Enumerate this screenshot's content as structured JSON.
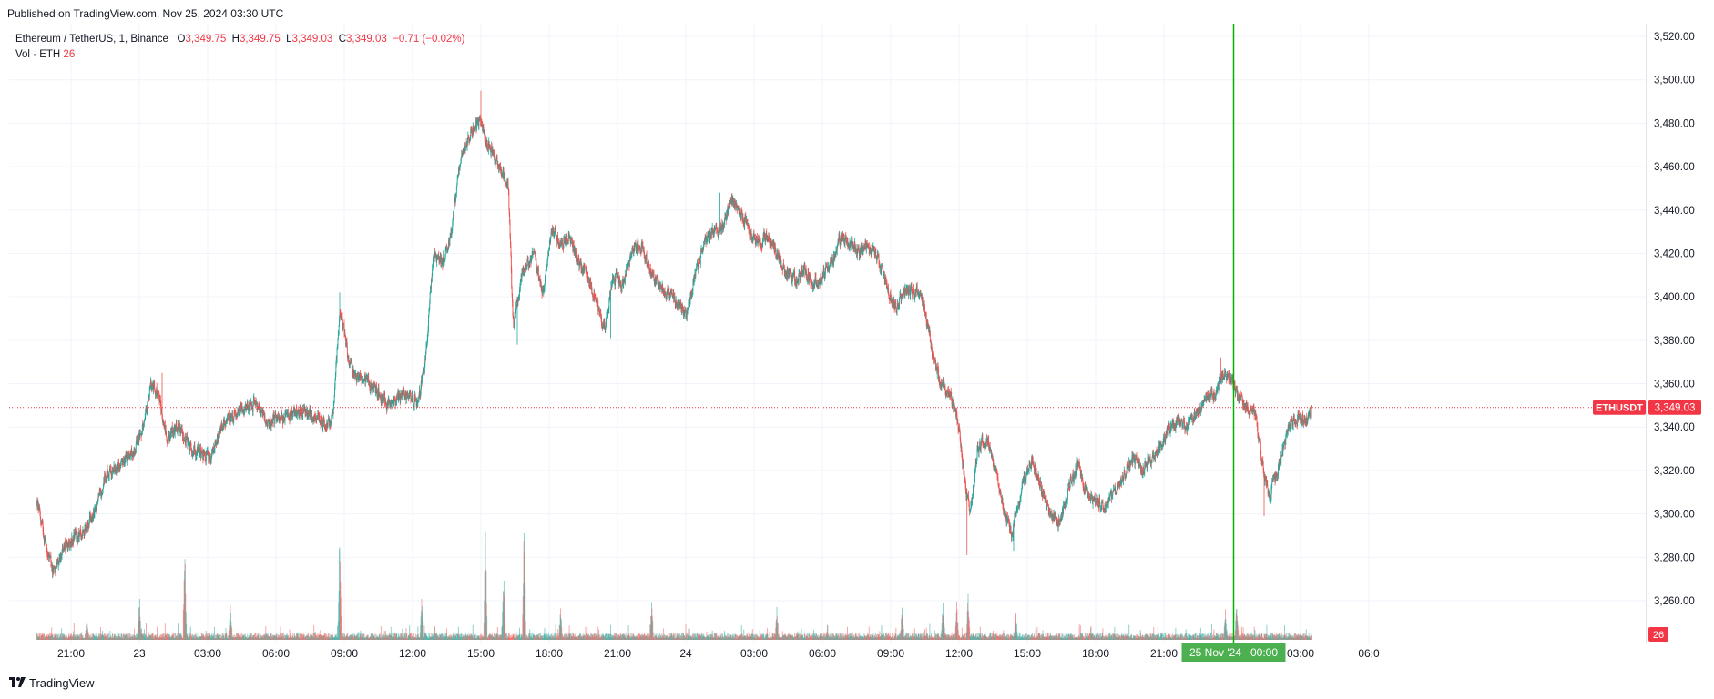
{
  "header": {
    "published": "Published on TradingView.com, Nov 25, 2024 03:30 UTC"
  },
  "legend": {
    "symbol": "Ethereum / TetherUS, 1, Binance",
    "open_label": "O",
    "open": "3,349.75",
    "high_label": "H",
    "high": "3,349.75",
    "low_label": "L",
    "low": "3,349.03",
    "close_label": "C",
    "close": "3,349.03",
    "change": "−0.71 (−0.02%)",
    "vol_label": "Vol · ETH",
    "vol_value": "26"
  },
  "footer": {
    "brand": "TradingView"
  },
  "colors": {
    "up": "#26a69a",
    "down": "#ef5350",
    "cursor": "#00b200",
    "price_tag": "#f23645",
    "cursor_tag": "#4caf50"
  },
  "chart_data": {
    "type": "candlestick",
    "symbol": "ETHUSDT",
    "interval": "1",
    "last_price": 3349.03,
    "last_price_label": "3,349.03",
    "symbol_tag": "ETHUSDT",
    "volume_last": "26",
    "y_ticks": [
      3260,
      3280,
      3300,
      3320,
      3340,
      3360,
      3380,
      3400,
      3420,
      3440,
      3460,
      3480,
      3500,
      3520
    ],
    "y_tick_labels": [
      "3,260.00",
      "3,280.00",
      "3,300.00",
      "3,320.00",
      "3,340.00",
      "3,360.00",
      "3,380.00",
      "3,400.00",
      "3,420.00",
      "3,440.00",
      "3,460.00",
      "3,480.00",
      "3,500.00",
      "3,520.00"
    ],
    "ylim": [
      3243,
      3525
    ],
    "x_hours_start": -6.5,
    "x_hours_end": 18.2,
    "x_ticks": [
      {
        "h": 0,
        "label": "21:00"
      },
      {
        "h": 3,
        "label": "23"
      },
      {
        "h": 6,
        "label": "03:00"
      },
      {
        "h": 9,
        "label": "06:00"
      },
      {
        "h": 12,
        "label": "09:00"
      },
      {
        "h": 15,
        "label": "12:00"
      },
      {
        "h": 18,
        "label": "15:00"
      },
      {
        "h": 21,
        "label": "18:00"
      },
      {
        "h": 24,
        "label": "21:00"
      },
      {
        "h": 27,
        "label": "24"
      },
      {
        "h": 30,
        "label": "03:00"
      },
      {
        "h": 33,
        "label": "06:00"
      },
      {
        "h": 36,
        "label": "09:00"
      },
      {
        "h": 39,
        "label": "12:00"
      },
      {
        "h": 42,
        "label": "15:00"
      },
      {
        "h": 45,
        "label": "18:00"
      },
      {
        "h": 48,
        "label": "21:00"
      },
      {
        "h": 54,
        "label": "03:00"
      },
      {
        "h": 57,
        "label": "06:0"
      }
    ],
    "cursor": {
      "h": 51.06,
      "label": "25 Nov '24   00:00"
    },
    "price_path": [
      [
        -1.5,
        3305
      ],
      [
        -1.2,
        3290
      ],
      [
        -0.8,
        3272
      ],
      [
        -0.3,
        3285
      ],
      [
        0.5,
        3292
      ],
      [
        1.0,
        3300
      ],
      [
        1.5,
        3318
      ],
      [
        2.2,
        3322
      ],
      [
        2.8,
        3330
      ],
      [
        3.2,
        3342
      ],
      [
        3.5,
        3360
      ],
      [
        3.8,
        3355
      ],
      [
        4.2,
        3335
      ],
      [
        4.7,
        3340
      ],
      [
        5.2,
        3330
      ],
      [
        5.7,
        3328
      ],
      [
        6.1,
        3325
      ],
      [
        6.6,
        3340
      ],
      [
        7.0,
        3345
      ],
      [
        7.6,
        3348
      ],
      [
        8.1,
        3352
      ],
      [
        8.6,
        3340
      ],
      [
        9.0,
        3345
      ],
      [
        9.5,
        3345
      ],
      [
        10.2,
        3348
      ],
      [
        10.7,
        3345
      ],
      [
        11.2,
        3342
      ],
      [
        11.5,
        3345
      ],
      [
        11.8,
        3395
      ],
      [
        12.2,
        3370
      ],
      [
        12.6,
        3362
      ],
      [
        13.1,
        3360
      ],
      [
        13.5,
        3355
      ],
      [
        14.0,
        3350
      ],
      [
        14.6,
        3355
      ],
      [
        15.2,
        3352
      ],
      [
        15.5,
        3365
      ],
      [
        15.9,
        3420
      ],
      [
        16.3,
        3415
      ],
      [
        16.7,
        3430
      ],
      [
        17.1,
        3465
      ],
      [
        17.5,
        3475
      ],
      [
        17.9,
        3480
      ],
      [
        18.3,
        3470
      ],
      [
        18.8,
        3460
      ],
      [
        19.2,
        3450
      ],
      [
        19.4,
        3385
      ],
      [
        19.8,
        3410
      ],
      [
        20.3,
        3420
      ],
      [
        20.7,
        3400
      ],
      [
        21.1,
        3430
      ],
      [
        21.5,
        3425
      ],
      [
        21.9,
        3428
      ],
      [
        22.3,
        3415
      ],
      [
        22.7,
        3410
      ],
      [
        23.1,
        3395
      ],
      [
        23.4,
        3385
      ],
      [
        23.8,
        3410
      ],
      [
        24.2,
        3405
      ],
      [
        24.6,
        3420
      ],
      [
        25.0,
        3425
      ],
      [
        25.4,
        3412
      ],
      [
        25.8,
        3405
      ],
      [
        26.2,
        3402
      ],
      [
        26.6,
        3398
      ],
      [
        27.0,
        3390
      ],
      [
        27.4,
        3410
      ],
      [
        27.8,
        3425
      ],
      [
        28.2,
        3430
      ],
      [
        28.6,
        3432
      ],
      [
        29.0,
        3445
      ],
      [
        29.4,
        3438
      ],
      [
        29.8,
        3430
      ],
      [
        30.2,
        3425
      ],
      [
        30.6,
        3428
      ],
      [
        31.0,
        3420
      ],
      [
        31.4,
        3410
      ],
      [
        31.8,
        3408
      ],
      [
        32.2,
        3412
      ],
      [
        32.6,
        3405
      ],
      [
        33.0,
        3410
      ],
      [
        33.4,
        3415
      ],
      [
        33.8,
        3428
      ],
      [
        34.2,
        3425
      ],
      [
        34.6,
        3420
      ],
      [
        35.0,
        3425
      ],
      [
        35.4,
        3418
      ],
      [
        35.8,
        3405
      ],
      [
        36.2,
        3395
      ],
      [
        36.6,
        3402
      ],
      [
        37.0,
        3403
      ],
      [
        37.4,
        3400
      ],
      [
        37.8,
        3375
      ],
      [
        38.2,
        3360
      ],
      [
        38.6,
        3355
      ],
      [
        38.9,
        3345
      ],
      [
        39.3,
        3310
      ],
      [
        39.5,
        3300
      ],
      [
        39.8,
        3330
      ],
      [
        40.2,
        3335
      ],
      [
        40.6,
        3320
      ],
      [
        41.0,
        3300
      ],
      [
        41.3,
        3290
      ],
      [
        41.8,
        3315
      ],
      [
        42.2,
        3325
      ],
      [
        42.6,
        3312
      ],
      [
        43.0,
        3300
      ],
      [
        43.4,
        3295
      ],
      [
        43.8,
        3312
      ],
      [
        44.2,
        3322
      ],
      [
        44.6,
        3310
      ],
      [
        45.0,
        3305
      ],
      [
        45.4,
        3303
      ],
      [
        45.8,
        3310
      ],
      [
        46.2,
        3318
      ],
      [
        46.6,
        3325
      ],
      [
        47.0,
        3320
      ],
      [
        47.4,
        3325
      ],
      [
        47.8,
        3330
      ],
      [
        48.2,
        3338
      ],
      [
        48.6,
        3342
      ],
      [
        49.0,
        3340
      ],
      [
        49.4,
        3345
      ],
      [
        49.8,
        3352
      ],
      [
        50.2,
        3355
      ],
      [
        50.6,
        3365
      ],
      [
        50.9,
        3363
      ],
      [
        51.2,
        3355
      ],
      [
        51.6,
        3350
      ],
      [
        52.0,
        3345
      ],
      [
        52.3,
        3325
      ],
      [
        52.6,
        3308
      ],
      [
        53.0,
        3320
      ],
      [
        53.4,
        3338
      ],
      [
        53.8,
        3345
      ],
      [
        54.2,
        3342
      ],
      [
        54.5,
        3348
      ]
    ],
    "spikes": [
      [
        3.5,
        3363
      ],
      [
        4.0,
        3365
      ],
      [
        11.8,
        3402
      ],
      [
        18.0,
        3495
      ],
      [
        19.6,
        3378
      ],
      [
        23.7,
        3381
      ],
      [
        28.5,
        3448
      ],
      [
        39.35,
        3281
      ],
      [
        41.4,
        3283
      ],
      [
        52.4,
        3299
      ],
      [
        50.5,
        3372
      ]
    ],
    "volume_spikes": [
      [
        0.7,
        25
      ],
      [
        3.0,
        60
      ],
      [
        5.0,
        130
      ],
      [
        7.0,
        45
      ],
      [
        11.8,
        160
      ],
      [
        15.4,
        55
      ],
      [
        18.2,
        170
      ],
      [
        19.0,
        95
      ],
      [
        19.9,
        175
      ],
      [
        21.5,
        40
      ],
      [
        25.5,
        50
      ],
      [
        31.0,
        40
      ],
      [
        36.5,
        45
      ],
      [
        38.3,
        50
      ],
      [
        38.9,
        52
      ],
      [
        39.4,
        70
      ],
      [
        41.5,
        35
      ],
      [
        50.7,
        35
      ],
      [
        51.2,
        48
      ]
    ],
    "volume_max": 180
  }
}
